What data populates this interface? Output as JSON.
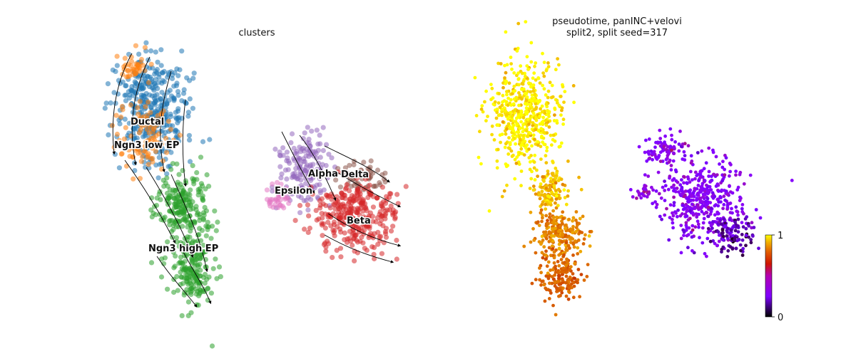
{
  "chart_data": [
    {
      "type": "scatter",
      "subtype": "umap-embedding-with-velocity-streamlines",
      "title": "clusters",
      "axes": "off",
      "grid": false,
      "legend": "on-data",
      "series": [
        {
          "name": "Ductal",
          "color": "#1f77b4"
        },
        {
          "name": "Ngn3 low EP",
          "color": "#ff7f0e"
        },
        {
          "name": "Ngn3 high EP",
          "color": "#2ca02c"
        },
        {
          "name": "Alpha",
          "color": "#9467bd"
        },
        {
          "name": "Delta",
          "color": "#8c564b"
        },
        {
          "name": "Beta",
          "color": "#d62728"
        },
        {
          "name": "Epsilon",
          "color": "#e377c2"
        }
      ],
      "annotations": [
        "Ductal",
        "Ngn3 low EP",
        "Ngn3 high EP",
        "Alpha",
        "Delta",
        "Epsilon",
        "Beta"
      ]
    },
    {
      "type": "scatter",
      "subtype": "umap-embedding-colored-by-continuous-value",
      "title_lines": [
        "pseudotime, panINC+velovi",
        "split2, split seed=317"
      ],
      "axes": "off",
      "grid": false,
      "colormap": "gnuplot",
      "colorbar": {
        "min": 0,
        "max": 1,
        "ticks": [
          "0",
          "1"
        ],
        "placement": "right"
      }
    }
  ]
}
